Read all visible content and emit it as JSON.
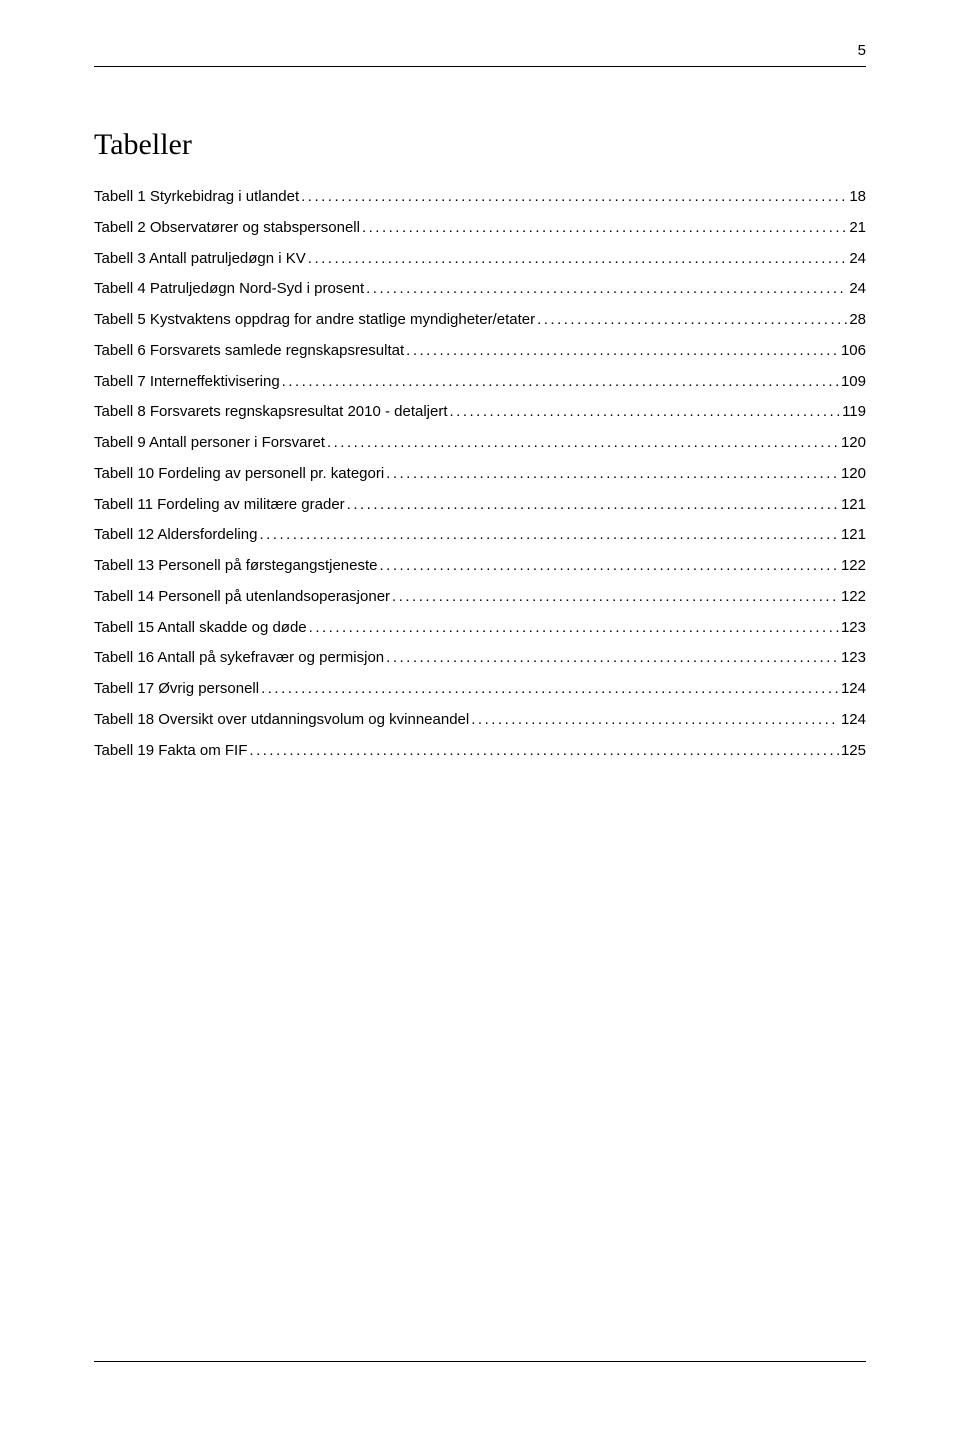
{
  "page_number": "5",
  "heading": "Tabeller",
  "entries": [
    {
      "title": "Tabell 1 Styrkebidrag i utlandet",
      "page": "18"
    },
    {
      "title": "Tabell 2 Observatører og stabspersonell",
      "page": "21"
    },
    {
      "title": "Tabell 3 Antall patruljedøgn i KV",
      "page": "24"
    },
    {
      "title": "Tabell 4 Patruljedøgn Nord-Syd i prosent",
      "page": "24"
    },
    {
      "title": "Tabell 5 Kystvaktens oppdrag for andre statlige myndigheter/etater",
      "page": "28"
    },
    {
      "title": "Tabell 6 Forsvarets samlede regnskapsresultat",
      "page": "106"
    },
    {
      "title": "Tabell 7 Interneffektivisering",
      "page": "109"
    },
    {
      "title": "Tabell 8 Forsvarets regnskapsresultat 2010 - detaljert",
      "page": "119"
    },
    {
      "title": "Tabell 9 Antall personer i Forsvaret",
      "page": "120"
    },
    {
      "title": "Tabell 10 Fordeling av personell pr. kategori",
      "page": "120"
    },
    {
      "title": "Tabell 11 Fordeling av militære grader",
      "page": "121"
    },
    {
      "title": "Tabell 12 Aldersfordeling",
      "page": "121"
    },
    {
      "title": "Tabell 13 Personell på førstegangstjeneste",
      "page": "122"
    },
    {
      "title": "Tabell 14 Personell på utenlandsoperasjoner",
      "page": "122"
    },
    {
      "title": "Tabell 15 Antall skadde og døde",
      "page": "123"
    },
    {
      "title": "Tabell 16 Antall på sykefravær og permisjon",
      "page": "123"
    },
    {
      "title": "Tabell 17 Øvrig personell",
      "page": "124"
    },
    {
      "title": "Tabell 18 Oversikt over utdanningsvolum og kvinneandel",
      "page": "124"
    },
    {
      "title": "Tabell 19 Fakta om FIF",
      "page": "125"
    }
  ]
}
